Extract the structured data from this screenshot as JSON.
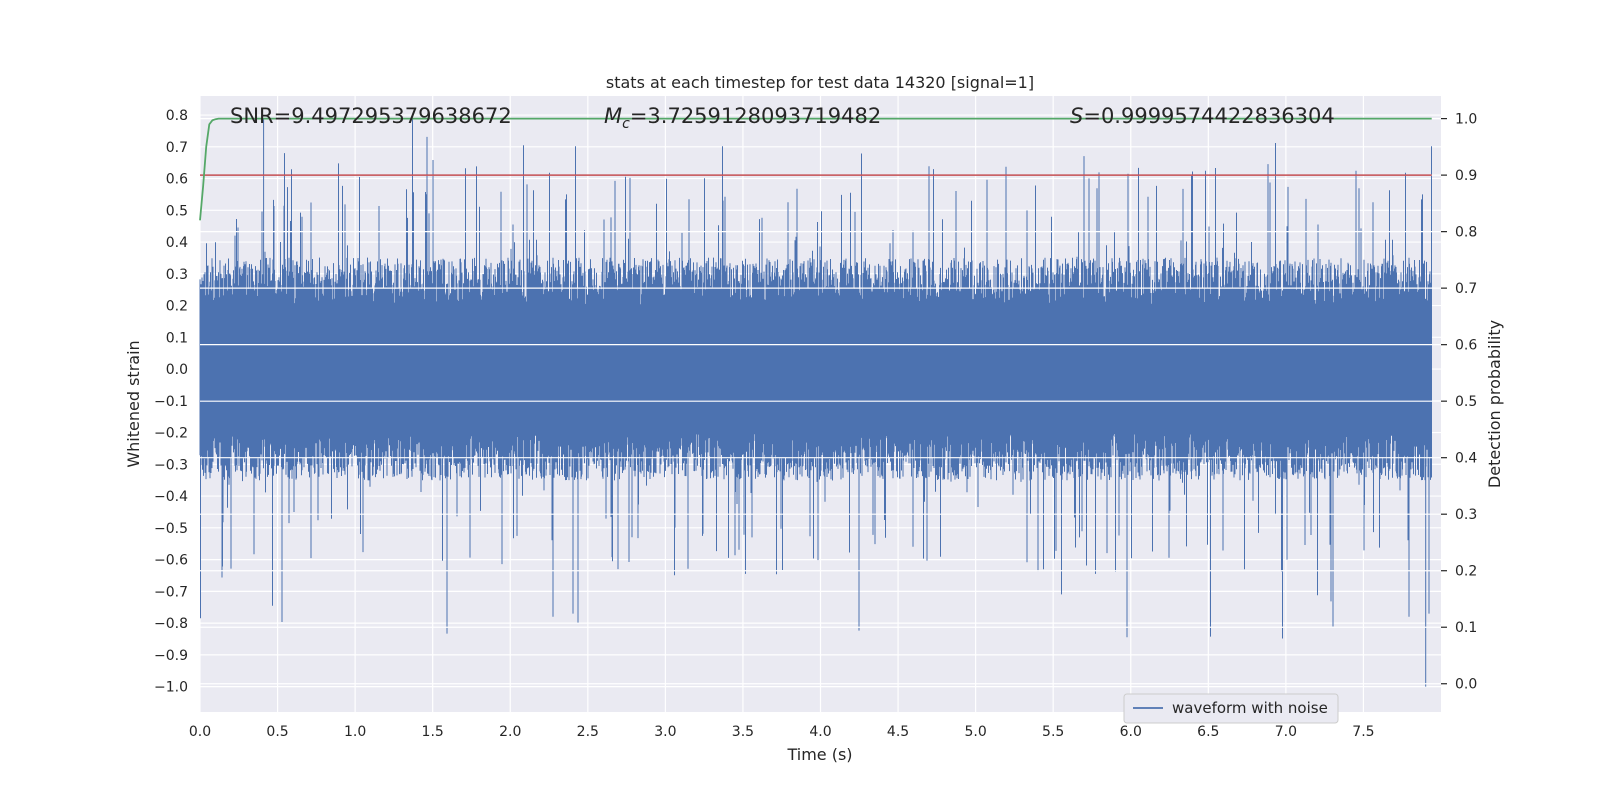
{
  "chart_data": {
    "type": "line",
    "title": "stats at each timestep for test data 14320 [signal=1]",
    "xlabel": "Time (s)",
    "ylabel_left": "Whitened strain",
    "ylabel_right": "Detection probability",
    "xlim": [
      0.0,
      8.0
    ],
    "ylim_left": [
      -1.08,
      0.86
    ],
    "ylim_right": [
      -0.05,
      1.04
    ],
    "x_ticks": [
      "0.0",
      "0.5",
      "1.0",
      "1.5",
      "2.0",
      "2.5",
      "3.0",
      "3.5",
      "4.0",
      "4.5",
      "5.0",
      "5.5",
      "6.0",
      "6.5",
      "7.0",
      "7.5"
    ],
    "y_left_ticks": [
      "0.8",
      "0.7",
      "0.6",
      "0.5",
      "0.4",
      "0.3",
      "0.2",
      "0.1",
      "0.0",
      "−0.1",
      "−0.2",
      "−0.3",
      "−0.4",
      "−0.5",
      "−0.6",
      "−0.7",
      "−0.8",
      "−0.9",
      "−1.0"
    ],
    "y_right_ticks": [
      "1.0",
      "0.9",
      "0.8",
      "0.7",
      "0.6",
      "0.5",
      "0.4",
      "0.3",
      "0.2",
      "0.1",
      "0.0"
    ],
    "annotations": {
      "snr": "SNR=9.497295379638672",
      "mc_symbol": "M",
      "mc_sub": "c",
      "mc_value": "=3.7259128093719482",
      "s_symbol": "S",
      "s_value": "=0.9999574422836304"
    },
    "threshold": {
      "value": 0.9,
      "axis": "right",
      "color": "#c44e52"
    },
    "detection_probability": {
      "name": "detection probability",
      "axis": "right",
      "color": "#55a868",
      "x": [
        0.0,
        0.02,
        0.04,
        0.06,
        0.08,
        0.1,
        0.12,
        0.15,
        7.94
      ],
      "y": [
        0.82,
        0.88,
        0.95,
        0.99,
        0.997,
        0.999,
        1.0,
        1.0,
        1.0
      ]
    },
    "series": [
      {
        "name": "waveform with noise",
        "axis": "left",
        "color": "#4c72b0"
      }
    ],
    "waveform_summary": {
      "x_range": [
        0.0,
        7.94
      ],
      "typical_band": [
        -0.27,
        0.27
      ],
      "peak_max": 0.79,
      "peak_min": -1.0
    },
    "legend": {
      "placement": "lower-right",
      "entries": [
        "waveform with noise"
      ]
    },
    "grid": true
  }
}
